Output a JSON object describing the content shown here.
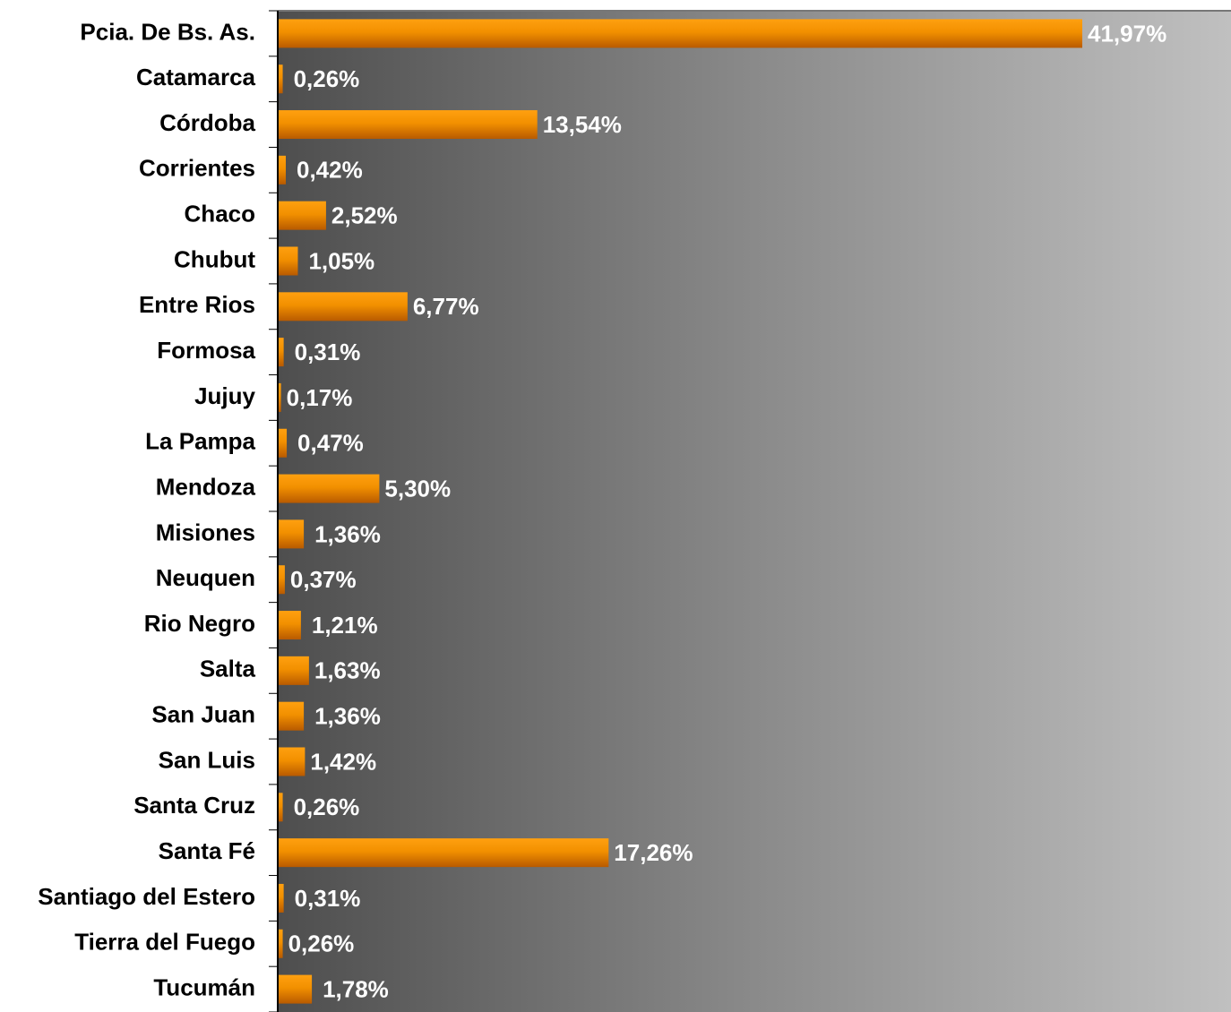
{
  "chart_data": {
    "type": "bar",
    "orientation": "horizontal",
    "categories": [
      "Pcia. De Bs. As.",
      "Catamarca",
      "Córdoba",
      "Corrientes",
      "Chaco",
      "Chubut",
      "Entre Rios",
      "Formosa",
      "Jujuy",
      "La Pampa",
      "Mendoza",
      "Misiones",
      "Neuquen",
      "Rio Negro",
      "Salta",
      "San Juan",
      "San Luis",
      "Santa Cruz",
      "Santa Fé",
      "Santiago del Estero",
      "Tierra del Fuego",
      "Tucumán"
    ],
    "values": [
      41.97,
      0.26,
      13.54,
      0.42,
      2.52,
      1.05,
      6.77,
      0.31,
      0.17,
      0.47,
      5.3,
      1.36,
      0.37,
      1.21,
      1.63,
      1.36,
      1.42,
      0.26,
      17.26,
      0.31,
      0.26,
      1.78
    ],
    "value_labels": [
      "41,97%",
      "0,26%",
      "13,54%",
      "0,42%",
      "2,52%",
      "1,05%",
      "6,77%",
      "0,31%",
      "0,17%",
      "0,47%",
      "5,30%",
      "1,36%",
      "0,37%",
      "1,21%",
      "1,63%",
      "1,36%",
      "1,42%",
      "0,26%",
      "17,26%",
      "0,31%",
      "0,26%",
      "1,78%"
    ],
    "color": "#f29000"
  }
}
